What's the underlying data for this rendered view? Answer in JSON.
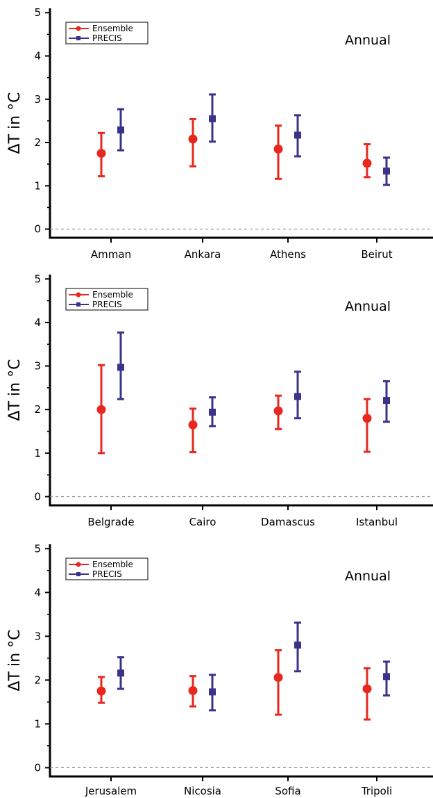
{
  "colors": {
    "ensemble": "#e8281e",
    "precis": "#3a3389",
    "axis": "#000000",
    "zero_line": "#888888"
  },
  "chart_data": [
    {
      "type": "errorbar",
      "annotation": "Annual",
      "ylabel": "ΔT in °C",
      "ylim": [
        -0.2,
        5.1
      ],
      "yticks": [
        "0",
        "1",
        "2",
        "3",
        "4",
        "5"
      ],
      "legend": {
        "position": "top-left",
        "entries": [
          "Ensemble",
          "PRECIS"
        ]
      },
      "categories": [
        "Amman",
        "Ankara",
        "Athens",
        "Beirut"
      ],
      "series": [
        {
          "name": "Ensemble",
          "values": [
            1.75,
            2.08,
            1.85,
            1.52
          ],
          "lower": [
            1.22,
            1.45,
            1.16,
            1.2
          ],
          "upper": [
            2.22,
            2.54,
            2.39,
            1.96
          ]
        },
        {
          "name": "PRECIS",
          "values": [
            2.29,
            2.55,
            2.17,
            1.34
          ],
          "lower": [
            1.82,
            2.02,
            1.68,
            1.02
          ],
          "upper": [
            2.77,
            3.11,
            2.63,
            1.65
          ]
        }
      ]
    },
    {
      "type": "errorbar",
      "annotation": "Annual",
      "ylabel": "ΔT in °C",
      "ylim": [
        -0.2,
        5.1
      ],
      "yticks": [
        "0",
        "1",
        "2",
        "3",
        "4",
        "5"
      ],
      "legend": {
        "position": "top-left",
        "entries": [
          "Ensemble",
          "PRECIS"
        ]
      },
      "categories": [
        "Belgrade",
        "Cairo",
        "Damascus",
        "Istanbul"
      ],
      "series": [
        {
          "name": "Ensemble",
          "values": [
            2.0,
            1.65,
            1.97,
            1.8
          ],
          "lower": [
            1.0,
            1.02,
            1.55,
            1.03
          ],
          "upper": [
            3.02,
            2.02,
            2.32,
            2.24
          ]
        },
        {
          "name": "PRECIS",
          "values": [
            2.97,
            1.94,
            2.3,
            2.21
          ],
          "lower": [
            2.24,
            1.62,
            1.8,
            1.72
          ],
          "upper": [
            3.77,
            2.28,
            2.87,
            2.65
          ]
        }
      ]
    },
    {
      "type": "errorbar",
      "annotation": "Annual",
      "ylabel": "ΔT in °C",
      "ylim": [
        -0.2,
        5.1
      ],
      "yticks": [
        "0",
        "1",
        "2",
        "3",
        "4",
        "5"
      ],
      "legend": {
        "position": "top-left",
        "entries": [
          "Ensemble",
          "PRECIS"
        ]
      },
      "categories": [
        "Jerusalem",
        "Nicosia",
        "Sofia",
        "Tripoli"
      ],
      "series": [
        {
          "name": "Ensemble",
          "values": [
            1.75,
            1.76,
            2.06,
            1.8
          ],
          "lower": [
            1.48,
            1.4,
            1.21,
            1.1
          ],
          "upper": [
            2.07,
            2.09,
            2.68,
            2.27
          ]
        },
        {
          "name": "PRECIS",
          "values": [
            2.16,
            1.73,
            2.8,
            2.08
          ],
          "lower": [
            1.8,
            1.31,
            2.2,
            1.65
          ],
          "upper": [
            2.52,
            2.12,
            3.31,
            2.42
          ]
        }
      ]
    }
  ]
}
